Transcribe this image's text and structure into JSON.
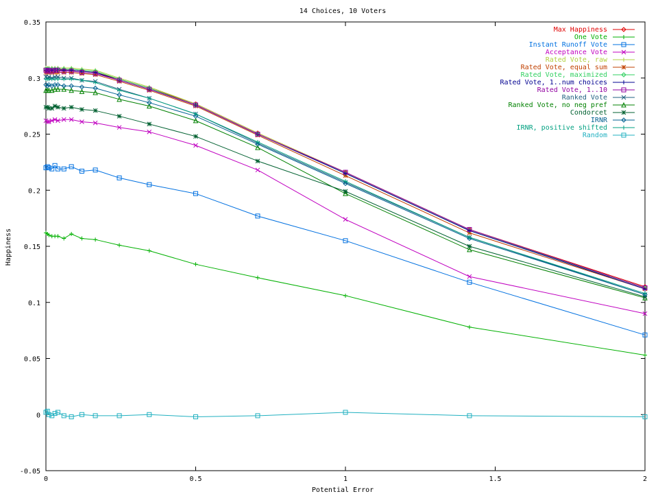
{
  "chart_data": {
    "type": "line",
    "title": "14 Choices, 10 Voters",
    "xlabel": "Potential Error",
    "ylabel": "Happiness",
    "xlim": [
      0,
      2
    ],
    "ylim": [
      -0.05,
      0.35
    ],
    "x_ticks": [
      0,
      0.5,
      1,
      1.5,
      2
    ],
    "x_tick_labels": [
      "0",
      "0.5",
      "1",
      "1.5",
      "2"
    ],
    "y_ticks": [
      -0.05,
      0,
      0.05,
      0.1,
      0.15,
      0.2,
      0.25,
      0.3,
      0.35
    ],
    "y_tick_labels": [
      "-0.05",
      "0",
      "0.05",
      "0.1",
      "0.15",
      "0.2",
      "0.25",
      "0.3",
      "0.35"
    ],
    "grid": false,
    "legend_position": "top-right",
    "x": [
      0,
      0.005,
      0.01,
      0.02,
      0.03,
      0.04,
      0.06,
      0.085,
      0.12,
      0.165,
      0.245,
      0.345,
      0.5,
      0.707,
      1.0,
      1.414,
      2.0
    ],
    "series": [
      {
        "name": "Max Happiness",
        "color": "#e00000",
        "marker": "diamond",
        "values": [
          0.308,
          0.307,
          0.308,
          0.308,
          0.307,
          0.308,
          0.307,
          0.307,
          0.306,
          0.305,
          0.299,
          0.291,
          0.277,
          0.251,
          0.216,
          0.165,
          0.114
        ]
      },
      {
        "name": "One Vote",
        "color": "#00b000",
        "marker": "plus",
        "values": [
          0.162,
          0.161,
          0.16,
          0.159,
          0.159,
          0.159,
          0.157,
          0.161,
          0.157,
          0.156,
          0.151,
          0.146,
          0.134,
          0.122,
          0.106,
          0.078,
          0.053
        ]
      },
      {
        "name": "Instant Runoff Vote",
        "color": "#0070e0",
        "marker": "square",
        "values": [
          0.22,
          0.221,
          0.22,
          0.219,
          0.222,
          0.219,
          0.219,
          0.221,
          0.217,
          0.218,
          0.211,
          0.205,
          0.197,
          0.177,
          0.155,
          0.118,
          0.071
        ]
      },
      {
        "name": "Acceptance Vote",
        "color": "#c000c0",
        "marker": "x",
        "values": [
          0.262,
          0.261,
          0.261,
          0.262,
          0.263,
          0.262,
          0.263,
          0.263,
          0.261,
          0.26,
          0.256,
          0.252,
          0.24,
          0.218,
          0.174,
          0.123,
          0.09
        ]
      },
      {
        "name": "Rated Vote, raw",
        "color": "#b0d040",
        "marker": "plus",
        "values": [
          0.309,
          0.309,
          0.309,
          0.309,
          0.309,
          0.309,
          0.309,
          0.309,
          0.308,
          0.307,
          0.3,
          0.292,
          0.277,
          0.251,
          0.216,
          0.165,
          0.113
        ]
      },
      {
        "name": "Rated Vote, equal sum",
        "color": "#c04000",
        "marker": "star",
        "values": [
          0.305,
          0.305,
          0.305,
          0.305,
          0.305,
          0.305,
          0.305,
          0.305,
          0.304,
          0.303,
          0.297,
          0.289,
          0.275,
          0.249,
          0.213,
          0.162,
          0.112
        ]
      },
      {
        "name": "Rated Vote, maximized",
        "color": "#30d060",
        "marker": "diamond",
        "values": [
          0.308,
          0.308,
          0.308,
          0.308,
          0.308,
          0.308,
          0.308,
          0.308,
          0.307,
          0.306,
          0.299,
          0.291,
          0.276,
          0.25,
          0.215,
          0.164,
          0.113
        ]
      },
      {
        "name": "Rated Vote, 1..num choices",
        "color": "#000090",
        "marker": "plus",
        "values": [
          0.307,
          0.307,
          0.307,
          0.307,
          0.307,
          0.307,
          0.307,
          0.307,
          0.306,
          0.305,
          0.298,
          0.29,
          0.276,
          0.25,
          0.215,
          0.164,
          0.112
        ]
      },
      {
        "name": "Rated Vote, 1..10",
        "color": "#9000a0",
        "marker": "square",
        "values": [
          0.307,
          0.306,
          0.307,
          0.306,
          0.307,
          0.307,
          0.306,
          0.306,
          0.305,
          0.304,
          0.298,
          0.29,
          0.276,
          0.25,
          0.216,
          0.165,
          0.113
        ]
      },
      {
        "name": "Ranked Vote",
        "color": "#206080",
        "marker": "x",
        "values": [
          0.301,
          0.3,
          0.301,
          0.3,
          0.301,
          0.301,
          0.3,
          0.3,
          0.298,
          0.297,
          0.29,
          0.282,
          0.268,
          0.242,
          0.207,
          0.158,
          0.107
        ]
      },
      {
        "name": "Ranked Vote, no neg pref",
        "color": "#008000",
        "marker": "triangle",
        "values": [
          0.289,
          0.289,
          0.289,
          0.289,
          0.29,
          0.29,
          0.29,
          0.289,
          0.288,
          0.287,
          0.281,
          0.275,
          0.262,
          0.238,
          0.197,
          0.147,
          0.104
        ]
      },
      {
        "name": "Condorcet",
        "color": "#006030",
        "marker": "star",
        "values": [
          0.274,
          0.274,
          0.273,
          0.273,
          0.275,
          0.274,
          0.273,
          0.274,
          0.272,
          0.271,
          0.266,
          0.259,
          0.248,
          0.226,
          0.199,
          0.15,
          0.105
        ]
      },
      {
        "name": "IRNR",
        "color": "#006090",
        "marker": "diamond",
        "values": [
          0.294,
          0.293,
          0.294,
          0.293,
          0.294,
          0.294,
          0.293,
          0.293,
          0.292,
          0.291,
          0.285,
          0.278,
          0.266,
          0.241,
          0.206,
          0.157,
          0.107
        ]
      },
      {
        "name": "IRNR, positive shifted",
        "color": "#00a080",
        "marker": "plus",
        "values": [
          0.299,
          0.299,
          0.299,
          0.299,
          0.299,
          0.299,
          0.299,
          0.299,
          0.298,
          0.296,
          0.289,
          0.282,
          0.268,
          0.243,
          0.208,
          0.158,
          0.108
        ]
      },
      {
        "name": "Random",
        "color": "#20b0c0",
        "marker": "square",
        "values": [
          0.002,
          0.003,
          0.0,
          -0.001,
          0.001,
          0.002,
          -0.001,
          -0.002,
          0.0,
          -0.001,
          -0.001,
          0.0,
          -0.002,
          -0.001,
          0.002,
          -0.001,
          -0.002
        ]
      }
    ]
  }
}
